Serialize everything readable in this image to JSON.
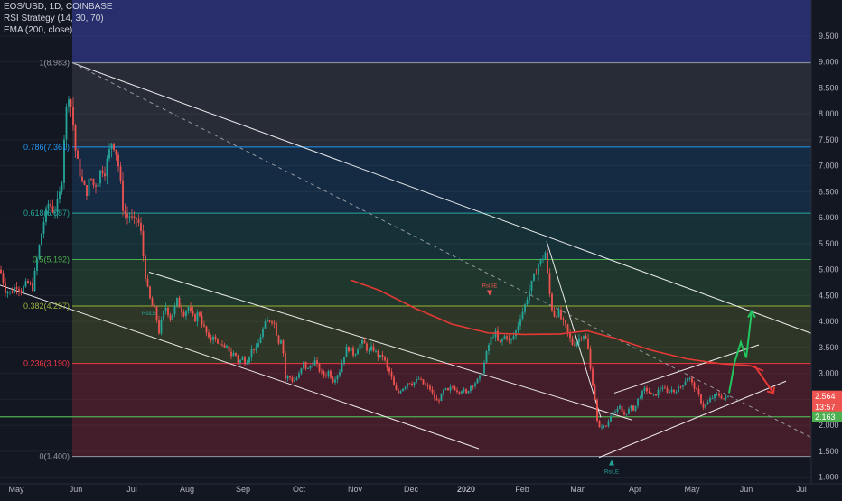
{
  "legend": {
    "symbol": "EOS/USD, 1D, COINBASE",
    "rsi": "RSI Strategy (14, 30, 70)",
    "ema": "EMA (200, close)"
  },
  "colors": {
    "background": "#131722",
    "up": "#26a69a",
    "down": "#ef5350",
    "ema": "#e53935",
    "trendlines": "#ffffff",
    "projection_up": "#22c55e",
    "projection_down": "#e53935"
  },
  "chart_data": {
    "type": "candlestick",
    "y_axis_ticks": [
      "1.000",
      "1.500",
      "2.000",
      "2.500",
      "3.000",
      "3.500",
      "4.000",
      "4.500",
      "5.000",
      "5.500",
      "6.000",
      "6.500",
      "7.000",
      "7.500",
      "8.000",
      "8.500",
      "9.000",
      "9.500"
    ],
    "x_axis_ticks": [
      "May",
      "Jun",
      "Jul",
      "Aug",
      "Sep",
      "Oct",
      "Nov",
      "Dec",
      "2020",
      "Feb",
      "Mar",
      "Apr",
      "May",
      "Jun",
      "Jul"
    ],
    "ylim": [
      0.7,
      9.9
    ],
    "price_labels": [
      {
        "text": "2.564",
        "value": 2.564,
        "color": "#ef5350"
      },
      {
        "text": "13:57",
        "value": 2.36,
        "color": "#ef5350"
      },
      {
        "text": "2.163",
        "value": 2.163,
        "color": "#4caf50"
      }
    ],
    "fibonacci": [
      {
        "label": "1(8.983)",
        "value": 8.983,
        "line": "#9598a1",
        "fill": "rgba(120,123,134,0.22)"
      },
      {
        "label": "0.786(7.361)",
        "value": 7.361,
        "line": "#2196f3",
        "fill": "rgba(33,150,243,0.16)"
      },
      {
        "label": "0.618(6.087)",
        "value": 6.087,
        "line": "#26a69a",
        "fill": "rgba(38,166,154,0.18)"
      },
      {
        "label": "0.5(5.192)",
        "value": 5.192,
        "line": "#4caf50",
        "fill": "rgba(76,175,80,0.22)"
      },
      {
        "label": "0.382(4.297)",
        "value": 4.297,
        "line": "#9bb33a",
        "fill": "rgba(155,179,58,0.2)"
      },
      {
        "label": "0.236(3.190)",
        "value": 3.19,
        "line": "#f23645",
        "fill": "rgba(242,54,69,0.22)"
      },
      {
        "label": "0(1.400)",
        "value": 1.4,
        "line": "#9598a1",
        "fill": null
      }
    ],
    "support_level": 2.163,
    "annotations": [
      {
        "text": "RsiSE",
        "x": 542,
        "value": 4.55,
        "color": "#ef5350",
        "direction": "down"
      },
      {
        "text": "RsiLE",
        "x": 677,
        "value": 1.28,
        "color": "#26a69a",
        "direction": "up"
      },
      {
        "text": "RsiLE",
        "x": 165,
        "value": 4.12,
        "color": "#26a69a",
        "direction": "none"
      }
    ],
    "close_series": [
      [
        0,
        5.0
      ],
      [
        6,
        4.6
      ],
      [
        12,
        4.55
      ],
      [
        18,
        4.7
      ],
      [
        24,
        4.6
      ],
      [
        30,
        4.75
      ],
      [
        36,
        4.65
      ],
      [
        42,
        5.3
      ],
      [
        48,
        5.9
      ],
      [
        54,
        6.3
      ],
      [
        60,
        6.1
      ],
      [
        64,
        6.3
      ],
      [
        68,
        6.6
      ],
      [
        72,
        7.9
      ],
      [
        76,
        8.4
      ],
      [
        80,
        8.0
      ],
      [
        84,
        7.2
      ],
      [
        88,
        6.9
      ],
      [
        92,
        6.6
      ],
      [
        96,
        6.5
      ],
      [
        100,
        6.8
      ],
      [
        104,
        6.6
      ],
      [
        108,
        6.7
      ],
      [
        112,
        6.95
      ],
      [
        116,
        6.9
      ],
      [
        120,
        7.2
      ],
      [
        124,
        7.5
      ],
      [
        128,
        7.3
      ],
      [
        132,
        6.9
      ],
      [
        136,
        6.2
      ],
      [
        140,
        6.0
      ],
      [
        144,
        6.05
      ],
      [
        148,
        5.9
      ],
      [
        152,
        6.0
      ],
      [
        156,
        5.7
      ],
      [
        160,
        5.0
      ],
      [
        164,
        4.55
      ],
      [
        168,
        4.3
      ],
      [
        172,
        4.2
      ],
      [
        176,
        3.8
      ],
      [
        180,
        4.1
      ],
      [
        184,
        4.3
      ],
      [
        188,
        4.05
      ],
      [
        192,
        4.2
      ],
      [
        196,
        4.4
      ],
      [
        200,
        4.25
      ],
      [
        204,
        4.15
      ],
      [
        208,
        4.3
      ],
      [
        212,
        4.1
      ],
      [
        216,
        4.05
      ],
      [
        220,
        4.2
      ],
      [
        224,
        3.95
      ],
      [
        228,
        3.8
      ],
      [
        232,
        3.6
      ],
      [
        236,
        3.75
      ],
      [
        240,
        3.55
      ],
      [
        244,
        3.6
      ],
      [
        248,
        3.45
      ],
      [
        252,
        3.5
      ],
      [
        256,
        3.35
      ],
      [
        260,
        3.4
      ],
      [
        264,
        3.2
      ],
      [
        268,
        3.3
      ],
      [
        272,
        3.2
      ],
      [
        276,
        3.35
      ],
      [
        280,
        3.5
      ],
      [
        284,
        3.45
      ],
      [
        288,
        3.7
      ],
      [
        292,
        3.9
      ],
      [
        296,
        4.0
      ],
      [
        300,
        4.05
      ],
      [
        304,
        3.95
      ],
      [
        308,
        3.6
      ],
      [
        312,
        3.7
      ],
      [
        316,
        2.9
      ],
      [
        320,
        2.95
      ],
      [
        324,
        2.85
      ],
      [
        328,
        2.9
      ],
      [
        332,
        3.0
      ],
      [
        336,
        3.2
      ],
      [
        340,
        3.05
      ],
      [
        344,
        3.15
      ],
      [
        348,
        3.25
      ],
      [
        352,
        3.1
      ],
      [
        356,
        3.0
      ],
      [
        360,
        2.95
      ],
      [
        364,
        3.05
      ],
      [
        368,
        2.85
      ],
      [
        372,
        2.95
      ],
      [
        376,
        3.05
      ],
      [
        380,
        3.3
      ],
      [
        384,
        3.5
      ],
      [
        388,
        3.45
      ],
      [
        392,
        3.35
      ],
      [
        396,
        3.5
      ],
      [
        400,
        3.6
      ],
      [
        404,
        3.55
      ],
      [
        408,
        3.4
      ],
      [
        412,
        3.5
      ],
      [
        416,
        3.4
      ],
      [
        420,
        3.3
      ],
      [
        424,
        3.35
      ],
      [
        428,
        3.1
      ],
      [
        432,
        3.0
      ],
      [
        436,
        2.75
      ],
      [
        440,
        2.6
      ],
      [
        444,
        2.7
      ],
      [
        448,
        2.75
      ],
      [
        452,
        2.85
      ],
      [
        456,
        2.8
      ],
      [
        460,
        2.85
      ],
      [
        464,
        2.9
      ],
      [
        468,
        2.8
      ],
      [
        472,
        2.75
      ],
      [
        476,
        2.7
      ],
      [
        480,
        2.55
      ],
      [
        484,
        2.45
      ],
      [
        488,
        2.55
      ],
      [
        492,
        2.7
      ],
      [
        496,
        2.65
      ],
      [
        500,
        2.75
      ],
      [
        504,
        2.7
      ],
      [
        508,
        2.65
      ],
      [
        512,
        2.7
      ],
      [
        516,
        2.6
      ],
      [
        520,
        2.75
      ],
      [
        524,
        2.8
      ],
      [
        528,
        2.85
      ],
      [
        532,
        2.95
      ],
      [
        536,
        3.2
      ],
      [
        540,
        3.5
      ],
      [
        544,
        3.7
      ],
      [
        548,
        3.8
      ],
      [
        552,
        3.55
      ],
      [
        556,
        3.65
      ],
      [
        560,
        3.75
      ],
      [
        564,
        3.6
      ],
      [
        568,
        3.7
      ],
      [
        572,
        3.85
      ],
      [
        576,
        4.1
      ],
      [
        580,
        4.25
      ],
      [
        584,
        4.5
      ],
      [
        588,
        4.7
      ],
      [
        592,
        4.9
      ],
      [
        596,
        5.1
      ],
      [
        600,
        5.2
      ],
      [
        604,
        5.35
      ],
      [
        606,
        4.9
      ],
      [
        610,
        4.3
      ],
      [
        614,
        4.1
      ],
      [
        618,
        4.2
      ],
      [
        622,
        4.0
      ],
      [
        626,
        3.9
      ],
      [
        630,
        3.7
      ],
      [
        634,
        3.55
      ],
      [
        638,
        3.6
      ],
      [
        642,
        3.7
      ],
      [
        646,
        3.75
      ],
      [
        650,
        3.6
      ],
      [
        654,
        3.0
      ],
      [
        658,
        2.6
      ],
      [
        662,
        1.9
      ],
      [
        666,
        2.0
      ],
      [
        670,
        1.95
      ],
      [
        674,
        2.1
      ],
      [
        678,
        2.3
      ],
      [
        682,
        2.25
      ],
      [
        686,
        2.35
      ],
      [
        690,
        2.2
      ],
      [
        694,
        2.25
      ],
      [
        698,
        2.35
      ],
      [
        702,
        2.3
      ],
      [
        706,
        2.5
      ],
      [
        710,
        2.6
      ],
      [
        714,
        2.7
      ],
      [
        718,
        2.65
      ],
      [
        722,
        2.55
      ],
      [
        726,
        2.6
      ],
      [
        730,
        2.7
      ],
      [
        734,
        2.75
      ],
      [
        738,
        2.6
      ],
      [
        742,
        2.7
      ],
      [
        746,
        2.65
      ],
      [
        750,
        2.7
      ],
      [
        754,
        2.75
      ],
      [
        758,
        2.85
      ],
      [
        762,
        2.95
      ],
      [
        766,
        2.8
      ],
      [
        770,
        2.7
      ],
      [
        774,
        2.55
      ],
      [
        778,
        2.35
      ],
      [
        782,
        2.4
      ],
      [
        786,
        2.5
      ],
      [
        790,
        2.55
      ],
      [
        794,
        2.6
      ],
      [
        798,
        2.55
      ],
      [
        802,
        2.5
      ],
      [
        806,
        2.56
      ]
    ],
    "ema_series": [
      [
        388,
        4.8
      ],
      [
        420,
        4.6
      ],
      [
        460,
        4.25
      ],
      [
        500,
        3.95
      ],
      [
        540,
        3.78
      ],
      [
        580,
        3.75
      ],
      [
        620,
        3.76
      ],
      [
        650,
        3.82
      ],
      [
        680,
        3.68
      ],
      [
        720,
        3.45
      ],
      [
        760,
        3.28
      ],
      [
        800,
        3.18
      ],
      [
        830,
        3.15
      ],
      [
        845,
        3.05
      ]
    ],
    "projection_up": [
      [
        807,
        2.62
      ],
      [
        813,
        3.2
      ],
      [
        820,
        3.6
      ],
      [
        826,
        3.3
      ],
      [
        832,
        4.2
      ]
    ],
    "projection_down": [
      [
        835,
        3.15
      ],
      [
        845,
        2.9
      ],
      [
        856,
        2.62
      ]
    ],
    "trendlines": [
      {
        "from": [
          80,
          8.983
        ],
        "to": [
          928,
          3.58
        ]
      },
      {
        "from": [
          0,
          4.7
        ],
        "to": [
          530,
          1.55
        ]
      },
      {
        "from": [
          165,
          4.95
        ],
        "to": [
          700,
          2.1
        ]
      },
      {
        "from": [
          605,
          5.55
        ],
        "to": [
          665,
          2.15
        ]
      },
      {
        "from": [
          663,
          1.38
        ],
        "to": [
          870,
          2.85
        ]
      },
      {
        "from": [
          680,
          2.62
        ],
        "to": [
          840,
          3.55
        ]
      }
    ],
    "dashed_trendline": {
      "from": [
        80,
        8.983
      ],
      "to": [
        928,
        1.5
      ]
    },
    "candles_end_x": 808
  }
}
